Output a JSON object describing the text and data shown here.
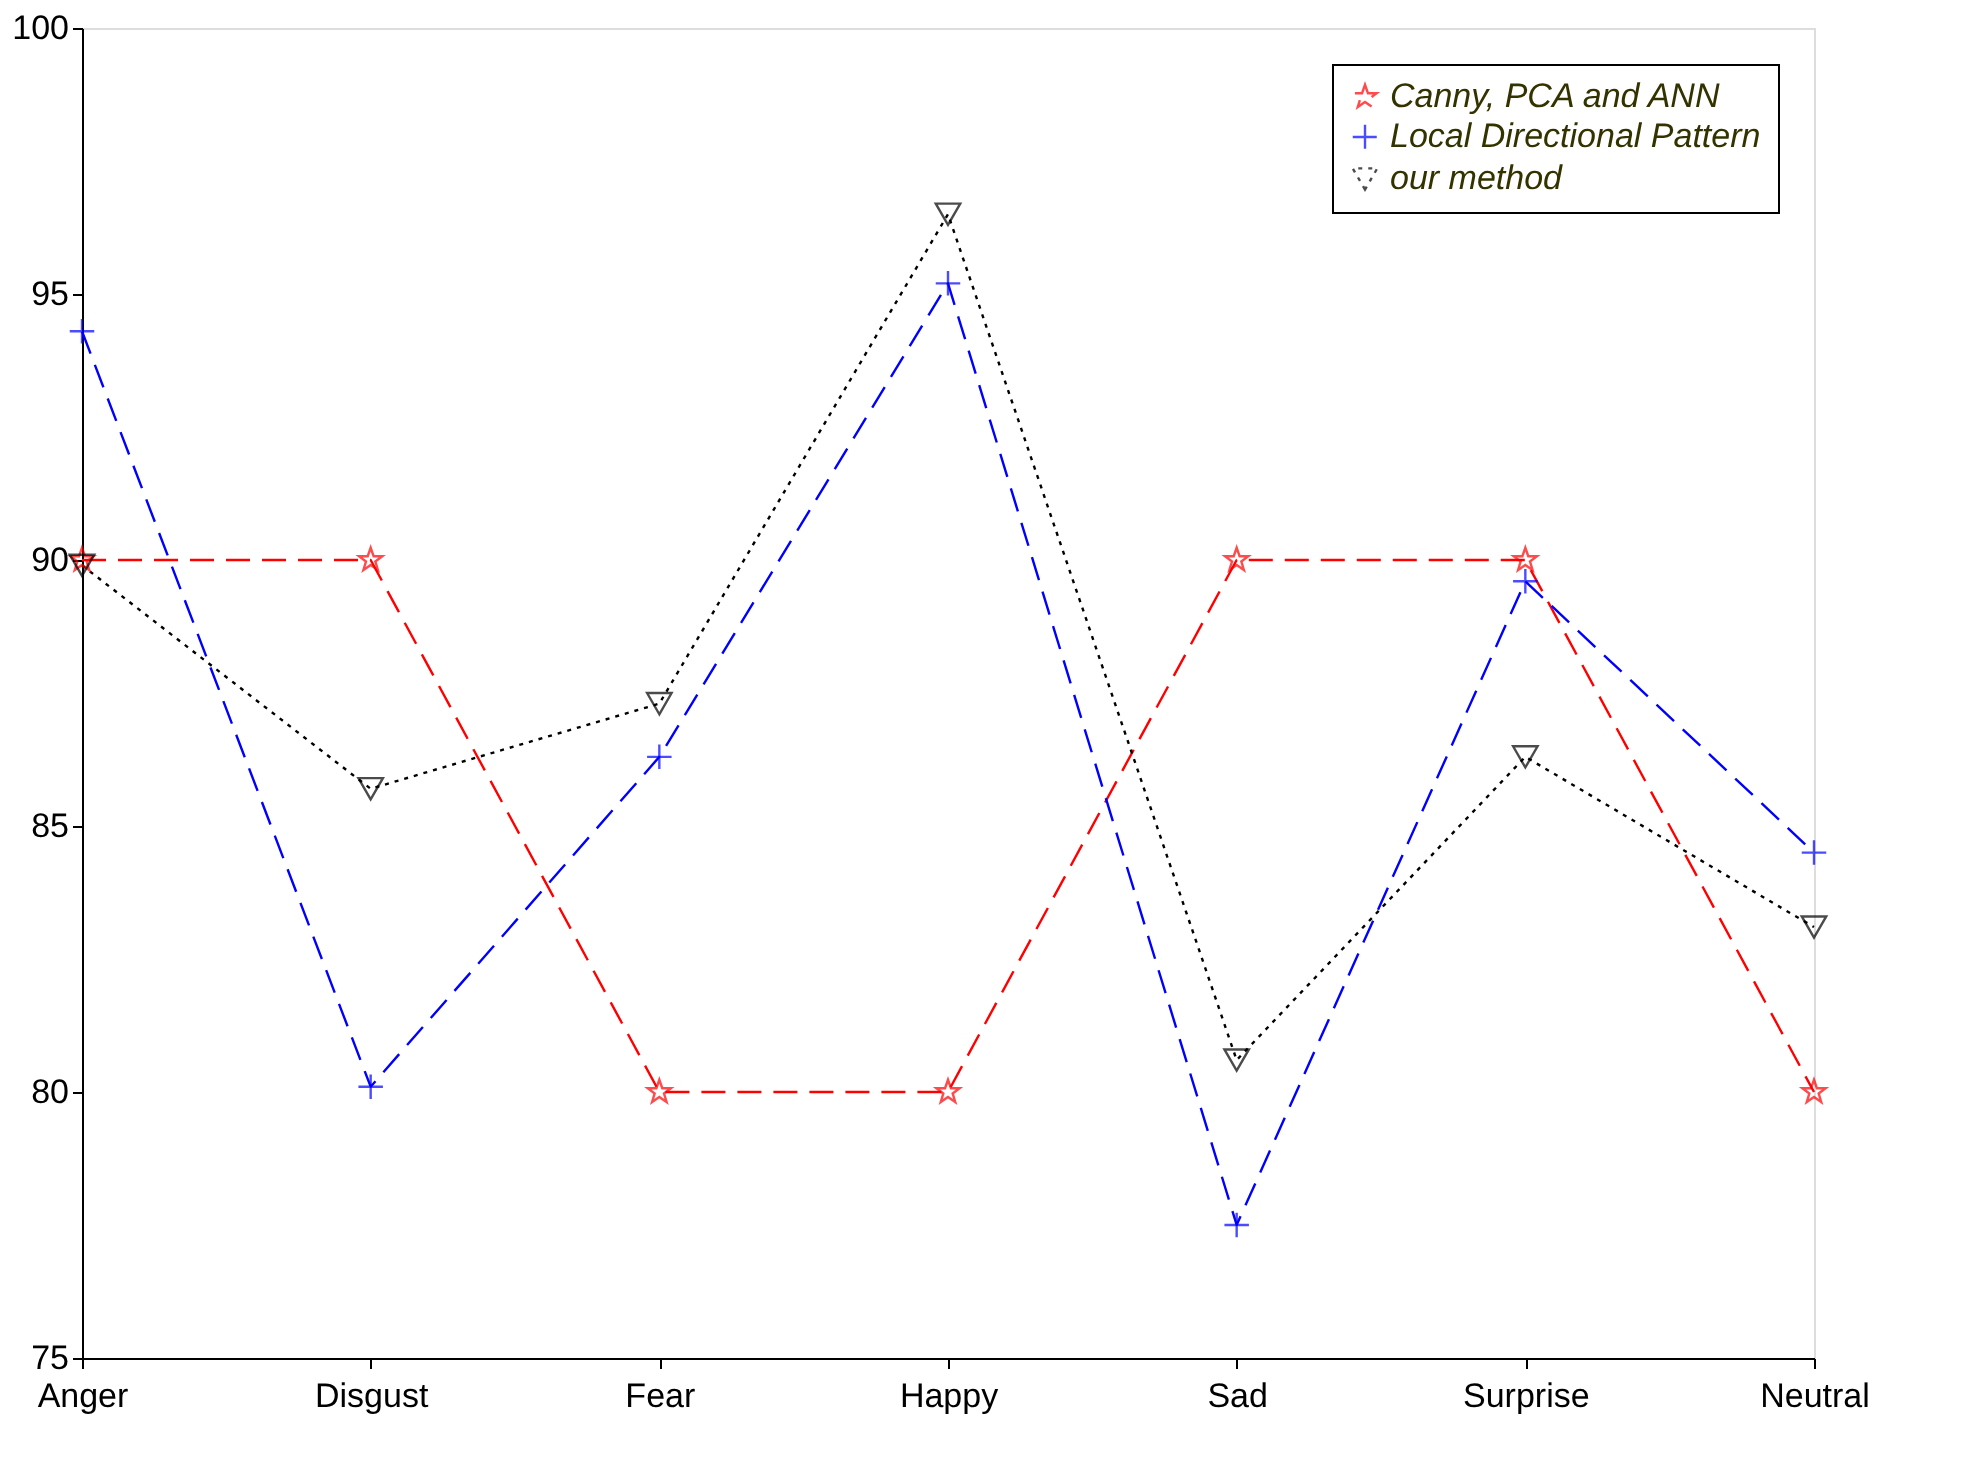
{
  "chart_data": {
    "type": "line",
    "categories": [
      "Anger",
      "Disgust",
      "Fear",
      "Happy",
      "Sad",
      "Surprise",
      "Neutral"
    ],
    "ylim": [
      75,
      100
    ],
    "yticks": [
      75,
      80,
      85,
      90,
      95,
      100
    ],
    "grid": false,
    "legend": "top right",
    "series": [
      {
        "name": "Canny, PCA and ANN",
        "color": "#ff0000",
        "marker": "star",
        "line_style": "dashed",
        "values": [
          90,
          90,
          80,
          80,
          90,
          90,
          80
        ]
      },
      {
        "name": "Local Directional Pattern",
        "color": "#0000ff",
        "marker": "cross",
        "line_style": "dashed",
        "values": [
          94.3,
          80.1,
          86.3,
          95.2,
          77.5,
          89.6,
          84.5
        ]
      },
      {
        "name": "our method",
        "color": "#000000",
        "marker": "triangle",
        "line_style": "dotted",
        "values": [
          89.9,
          85.7,
          87.3,
          96.5,
          80.6,
          86.3,
          83.1
        ]
      }
    ]
  }
}
